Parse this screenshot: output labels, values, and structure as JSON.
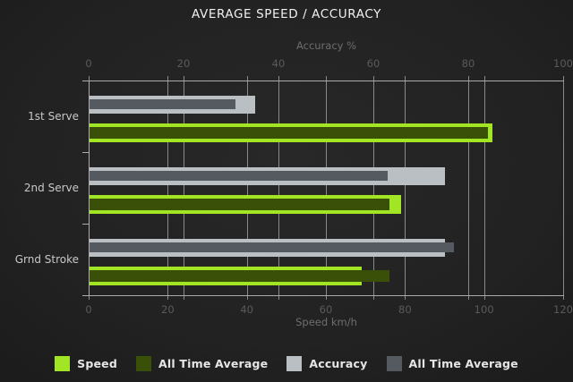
{
  "chart_data": {
    "type": "bar",
    "orientation": "horizontal",
    "title": "AVERAGE SPEED / ACCURACY",
    "categories": [
      "1st Serve",
      "2nd Serve",
      "Grnd Stroke"
    ],
    "top_axis": {
      "label": "Accuracy %",
      "min": 0,
      "max": 100,
      "ticks": [
        0,
        20,
        40,
        60,
        80,
        100
      ]
    },
    "bottom_axis": {
      "label": "Speed km/h",
      "min": 0,
      "max": 120,
      "ticks": [
        0,
        20,
        40,
        60,
        80,
        100,
        120
      ]
    },
    "series": [
      {
        "name": "Speed",
        "axis": "bottom",
        "color": "#a2e524",
        "values": [
          102,
          79,
          69
        ]
      },
      {
        "name": "All Time Average",
        "axis": "bottom",
        "color": "#3a5008",
        "values": [
          101,
          76,
          76
        ]
      },
      {
        "name": "Accuracy",
        "axis": "top",
        "color": "#b9bfc2",
        "values": [
          35,
          75,
          75
        ]
      },
      {
        "name": "All Time Average",
        "axis": "top",
        "color": "#545a60",
        "values": [
          31,
          63,
          77
        ]
      }
    ],
    "legend": [
      {
        "label": "Speed",
        "color": "#a2e524"
      },
      {
        "label": "All Time Average",
        "color": "#3a5008"
      },
      {
        "label": "Accuracy",
        "color": "#b9bfc2"
      },
      {
        "label": "All Time Average",
        "color": "#545a60"
      }
    ],
    "grid": true,
    "legend_position": "bottom"
  },
  "colors": {
    "background_center": "#282828",
    "background_edge": "#1a1a1a",
    "gridline": "#9c9c9c",
    "axis_line": "#ababab",
    "tick_label": "#5a5a5a",
    "axis_title": "#6e6e6e",
    "category_label": "#c8c8c8",
    "title_text": "#f0f0f0",
    "legend_text": "#e6e6e6"
  }
}
